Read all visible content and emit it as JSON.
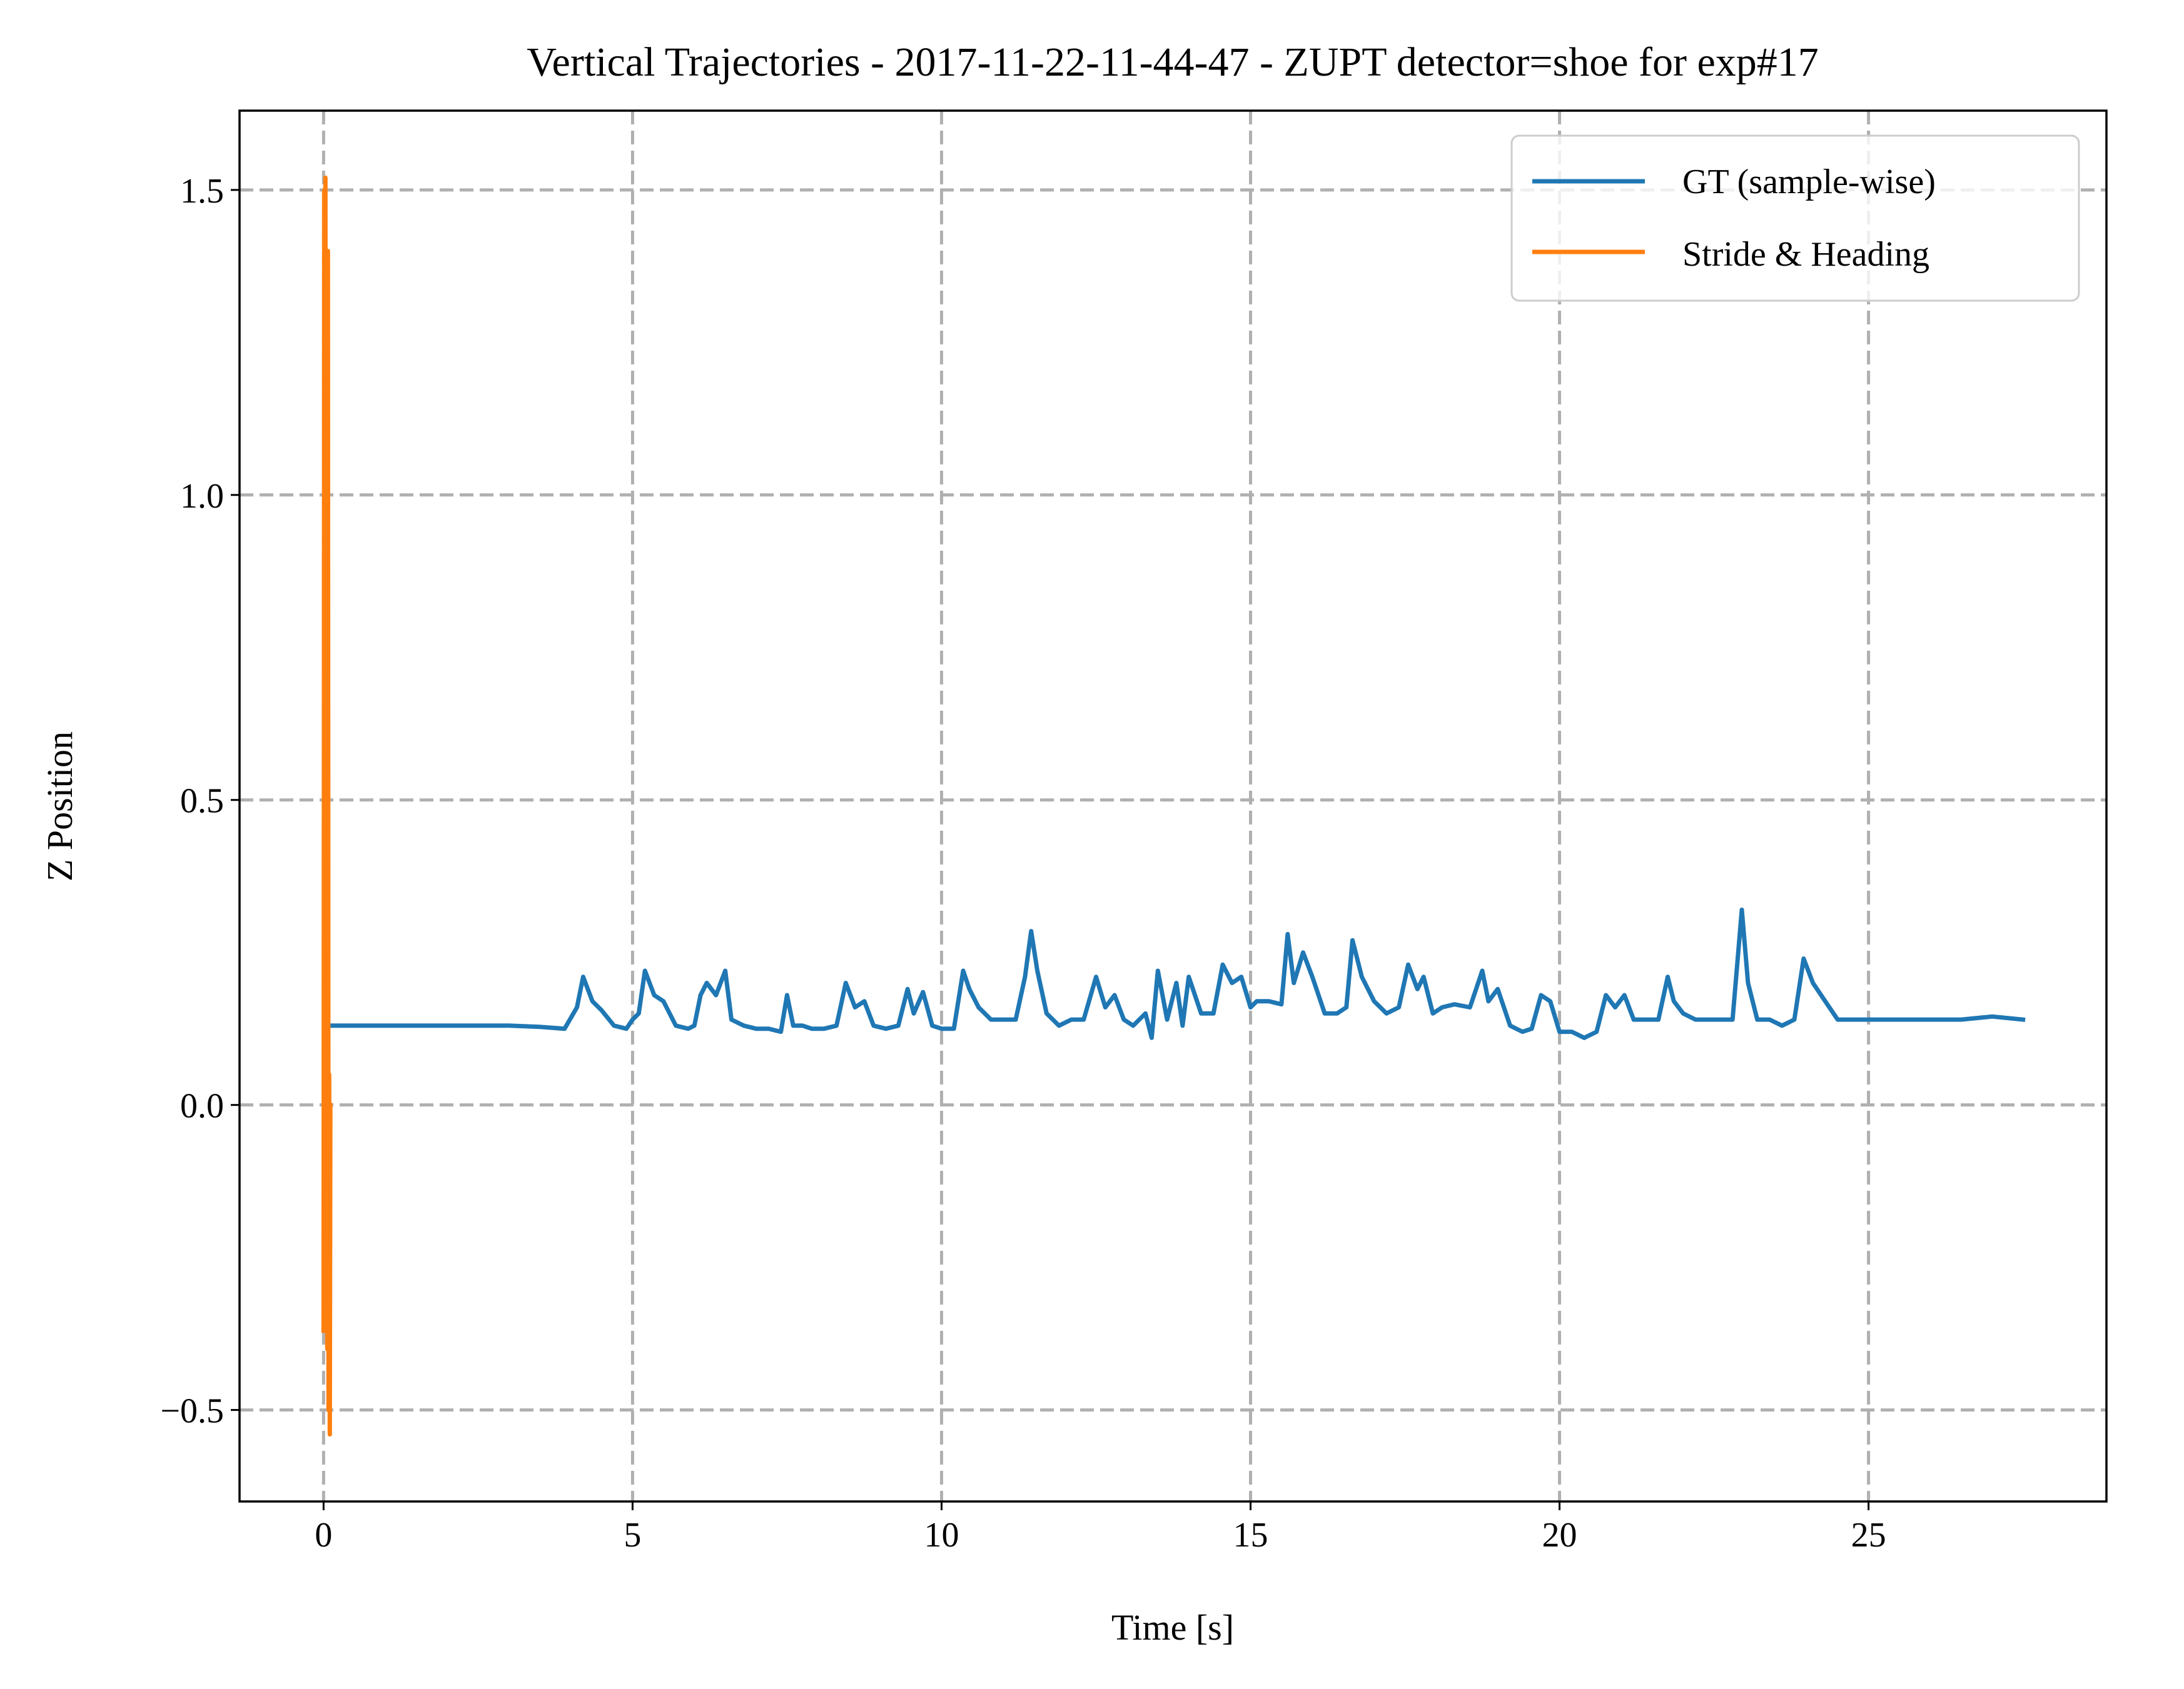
{
  "chart_data": {
    "type": "line",
    "title": "Vertical Trajectories - 2017-11-22-11-44-47 - ZUPT detector=shoe for exp#17",
    "xlabel": "Time [s]",
    "ylabel": "Z Position",
    "xlim": [
      -1.36,
      28.85
    ],
    "ylim": [
      -0.65,
      1.63
    ],
    "xticks": [
      0,
      5,
      10,
      15,
      20,
      25
    ],
    "xtick_labels": [
      "0",
      "5",
      "10",
      "15",
      "20",
      "25"
    ],
    "yticks": [
      -0.5,
      0.0,
      0.5,
      1.0,
      1.5
    ],
    "ytick_labels": [
      "−0.5",
      "0.0",
      "0.5",
      "1.0",
      "1.5"
    ],
    "grid": true,
    "legend_position": "top-right",
    "series": [
      {
        "name": "GT (sample-wise)",
        "color": "#1f77b4",
        "x": [
          0.1,
          1.0,
          2.0,
          3.0,
          3.5,
          3.9,
          4.1,
          4.2,
          4.35,
          4.5,
          4.7,
          4.9,
          5.0,
          5.1,
          5.2,
          5.35,
          5.5,
          5.7,
          5.9,
          6.0,
          6.1,
          6.2,
          6.35,
          6.5,
          6.6,
          6.8,
          7.0,
          7.2,
          7.4,
          7.5,
          7.6,
          7.75,
          7.9,
          8.1,
          8.3,
          8.45,
          8.6,
          8.75,
          8.9,
          9.1,
          9.3,
          9.45,
          9.55,
          9.7,
          9.85,
          10.0,
          10.2,
          10.35,
          10.45,
          10.6,
          10.8,
          11.0,
          11.2,
          11.35,
          11.45,
          11.55,
          11.7,
          11.9,
          12.1,
          12.3,
          12.5,
          12.65,
          12.8,
          12.95,
          13.1,
          13.3,
          13.4,
          13.5,
          13.65,
          13.8,
          13.9,
          14.0,
          14.2,
          14.4,
          14.55,
          14.7,
          14.85,
          15.0,
          15.1,
          15.3,
          15.5,
          15.6,
          15.7,
          15.85,
          16.0,
          16.2,
          16.4,
          16.55,
          16.65,
          16.8,
          17.0,
          17.2,
          17.4,
          17.55,
          17.7,
          17.8,
          17.95,
          18.1,
          18.3,
          18.55,
          18.75,
          18.85,
          19.0,
          19.2,
          19.4,
          19.55,
          19.7,
          19.85,
          20.0,
          20.2,
          20.4,
          20.6,
          20.75,
          20.9,
          21.05,
          21.2,
          21.4,
          21.6,
          21.75,
          21.85,
          22.0,
          22.2,
          22.4,
          22.6,
          22.8,
          22.95,
          23.05,
          23.2,
          23.4,
          23.6,
          23.8,
          23.95,
          24.1,
          24.3,
          24.5,
          24.8,
          25.0,
          25.5,
          26.0,
          26.5,
          27.0,
          27.5
        ],
        "y": [
          0.13,
          0.13,
          0.13,
          0.13,
          0.128,
          0.125,
          0.16,
          0.21,
          0.17,
          0.155,
          0.13,
          0.125,
          0.14,
          0.15,
          0.22,
          0.18,
          0.17,
          0.13,
          0.125,
          0.13,
          0.18,
          0.2,
          0.18,
          0.22,
          0.14,
          0.13,
          0.125,
          0.125,
          0.12,
          0.18,
          0.13,
          0.13,
          0.125,
          0.125,
          0.13,
          0.2,
          0.16,
          0.17,
          0.13,
          0.125,
          0.13,
          0.19,
          0.15,
          0.185,
          0.13,
          0.125,
          0.125,
          0.22,
          0.19,
          0.16,
          0.14,
          0.14,
          0.14,
          0.21,
          0.285,
          0.22,
          0.15,
          0.13,
          0.14,
          0.14,
          0.21,
          0.16,
          0.18,
          0.14,
          0.13,
          0.15,
          0.11,
          0.22,
          0.14,
          0.2,
          0.13,
          0.21,
          0.15,
          0.15,
          0.23,
          0.2,
          0.21,
          0.16,
          0.17,
          0.17,
          0.165,
          0.28,
          0.2,
          0.25,
          0.21,
          0.15,
          0.15,
          0.16,
          0.27,
          0.21,
          0.17,
          0.15,
          0.16,
          0.23,
          0.19,
          0.21,
          0.15,
          0.16,
          0.165,
          0.16,
          0.22,
          0.17,
          0.19,
          0.13,
          0.12,
          0.125,
          0.18,
          0.17,
          0.12,
          0.12,
          0.11,
          0.12,
          0.18,
          0.16,
          0.18,
          0.14,
          0.14,
          0.14,
          0.21,
          0.17,
          0.15,
          0.14,
          0.14,
          0.14,
          0.14,
          0.32,
          0.2,
          0.14,
          0.14,
          0.13,
          0.14,
          0.24,
          0.2,
          0.17,
          0.14,
          0.14,
          0.14,
          0.14,
          0.14,
          0.14,
          0.145,
          0.14
        ]
      },
      {
        "name": "Stride & Heading",
        "color": "#ff7f0e",
        "x": [
          0.0,
          0.01,
          0.02,
          0.03,
          0.04,
          0.05,
          0.06,
          0.07,
          0.08,
          0.09,
          0.1,
          0.11
        ],
        "y": [
          -0.37,
          1.5,
          -0.3,
          1.52,
          0.3,
          1.2,
          -0.4,
          1.4,
          -0.5,
          0.05,
          -0.54,
          0.0
        ]
      }
    ]
  }
}
